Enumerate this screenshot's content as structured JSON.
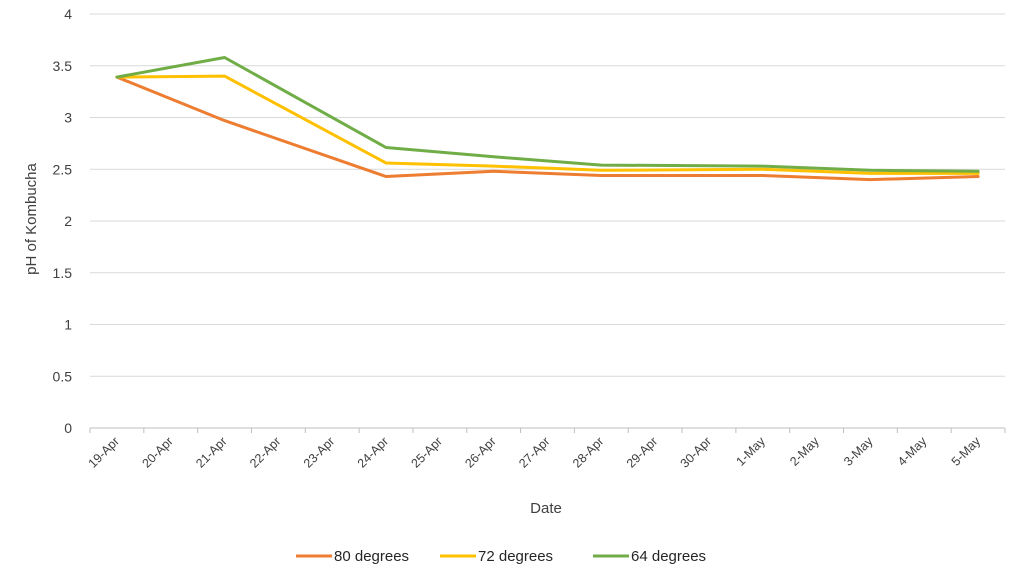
{
  "chart_data": {
    "type": "line",
    "title": "",
    "xlabel": "Date",
    "ylabel": "pH of Kombucha",
    "ylim": [
      0,
      4
    ],
    "yticks": [
      "0",
      "0.5",
      "1",
      "1.5",
      "2",
      "2.5",
      "3",
      "3.5",
      "4"
    ],
    "grid": true,
    "legend_position": "bottom",
    "categories": [
      "19-Apr",
      "20-Apr",
      "21-Apr",
      "22-Apr",
      "23-Apr",
      "24-Apr",
      "25-Apr",
      "26-Apr",
      "27-Apr",
      "28-Apr",
      "29-Apr",
      "30-Apr",
      "1-May",
      "2-May",
      "3-May",
      "4-May",
      "5-May"
    ],
    "series": [
      {
        "name": "80 degrees",
        "color": "#ED7D31",
        "values": [
          3.39,
          null,
          2.97,
          null,
          null,
          2.43,
          null,
          2.48,
          null,
          2.44,
          null,
          null,
          2.44,
          null,
          2.4,
          null,
          2.43
        ]
      },
      {
        "name": "72 degrees",
        "color": "#FFC000",
        "values": [
          3.39,
          null,
          3.4,
          null,
          null,
          2.56,
          null,
          2.53,
          null,
          2.49,
          null,
          null,
          2.5,
          null,
          2.46,
          null,
          2.46
        ]
      },
      {
        "name": "64 degrees",
        "color": "#70AD47",
        "values": [
          3.39,
          null,
          3.58,
          null,
          null,
          2.71,
          null,
          2.62,
          null,
          2.54,
          null,
          null,
          2.53,
          null,
          2.49,
          null,
          2.48
        ]
      }
    ]
  }
}
